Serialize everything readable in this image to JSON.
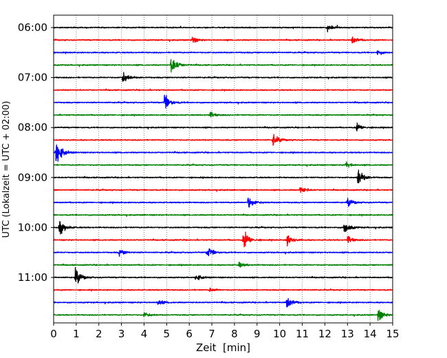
{
  "chart_data": {
    "type": "line",
    "title": "",
    "xlabel": "Zeit  [min]",
    "ylabel": "UTC (Lokalzeit = UTC + 02:00)",
    "xlim": [
      0,
      15
    ],
    "x_ticks": [
      "0",
      "1",
      "2",
      "3",
      "4",
      "5",
      "6",
      "7",
      "8",
      "9",
      "10",
      "11",
      "12",
      "13",
      "14",
      "15"
    ],
    "y_ticks": [
      "06:00",
      "07:00",
      "08:00",
      "09:00",
      "10:00",
      "11:00"
    ],
    "grid": "vertical dotted at each minute",
    "row_interval_minutes": 15,
    "color_cycle": [
      "#000000",
      "#ff0000",
      "#0000ff",
      "#008000"
    ],
    "series": [
      {
        "start": "06:00",
        "color": "#000000",
        "events": [
          [
            12.1,
            0.6
          ]
        ]
      },
      {
        "start": "06:15",
        "color": "#ff0000",
        "events": [
          [
            6.1,
            0.5
          ],
          [
            13.2,
            0.6
          ]
        ]
      },
      {
        "start": "06:30",
        "color": "#0000ff",
        "events": [
          [
            14.3,
            0.4
          ]
        ]
      },
      {
        "start": "06:45",
        "color": "#008000",
        "events": [
          [
            5.2,
            1.4
          ]
        ]
      },
      {
        "start": "07:00",
        "color": "#000000",
        "events": [
          [
            3.05,
            0.9
          ]
        ]
      },
      {
        "start": "07:15",
        "color": "#ff0000",
        "events": []
      },
      {
        "start": "07:30",
        "color": "#0000ff",
        "events": [
          [
            4.9,
            1.3
          ]
        ]
      },
      {
        "start": "07:45",
        "color": "#008000",
        "events": [
          [
            6.9,
            0.5
          ]
        ]
      },
      {
        "start": "08:00",
        "color": "#000000",
        "events": [
          [
            13.4,
            0.6
          ]
        ]
      },
      {
        "start": "08:15",
        "color": "#ff0000",
        "events": [
          [
            9.7,
            0.9
          ]
        ]
      },
      {
        "start": "08:30",
        "color": "#0000ff",
        "events": [
          [
            0.1,
            1.8
          ]
        ]
      },
      {
        "start": "08:45",
        "color": "#008000",
        "events": [
          [
            12.9,
            0.5
          ]
        ]
      },
      {
        "start": "09:00",
        "color": "#000000",
        "events": [
          [
            13.45,
            1.3
          ]
        ]
      },
      {
        "start": "09:15",
        "color": "#ff0000",
        "events": [
          [
            10.9,
            0.6
          ]
        ]
      },
      {
        "start": "09:30",
        "color": "#0000ff",
        "events": [
          [
            8.6,
            1.0
          ],
          [
            13.0,
            0.6
          ]
        ]
      },
      {
        "start": "09:45",
        "color": "#008000",
        "events": []
      },
      {
        "start": "10:00",
        "color": "#000000",
        "events": [
          [
            0.25,
            1.2
          ],
          [
            12.85,
            1.1
          ]
        ]
      },
      {
        "start": "10:15",
        "color": "#ff0000",
        "events": [
          [
            8.4,
            1.5
          ],
          [
            10.3,
            0.9
          ],
          [
            13.0,
            0.6
          ]
        ]
      },
      {
        "start": "10:30",
        "color": "#0000ff",
        "events": [
          [
            2.9,
            0.5
          ],
          [
            6.8,
            0.9
          ]
        ]
      },
      {
        "start": "10:45",
        "color": "#008000",
        "events": [
          [
            8.2,
            0.4
          ]
        ]
      },
      {
        "start": "11:00",
        "color": "#000000",
        "events": [
          [
            0.95,
            1.3
          ],
          [
            6.3,
            0.4
          ]
        ]
      },
      {
        "start": "11:15",
        "color": "#ff0000",
        "events": [
          [
            6.9,
            0.3
          ]
        ]
      },
      {
        "start": "11:30",
        "color": "#0000ff",
        "events": [
          [
            10.3,
            1.0
          ],
          [
            4.6,
            0.4
          ]
        ]
      },
      {
        "start": "11:45",
        "color": "#008000",
        "events": [
          [
            14.35,
            0.9
          ],
          [
            4.0,
            0.4
          ]
        ]
      }
    ]
  }
}
